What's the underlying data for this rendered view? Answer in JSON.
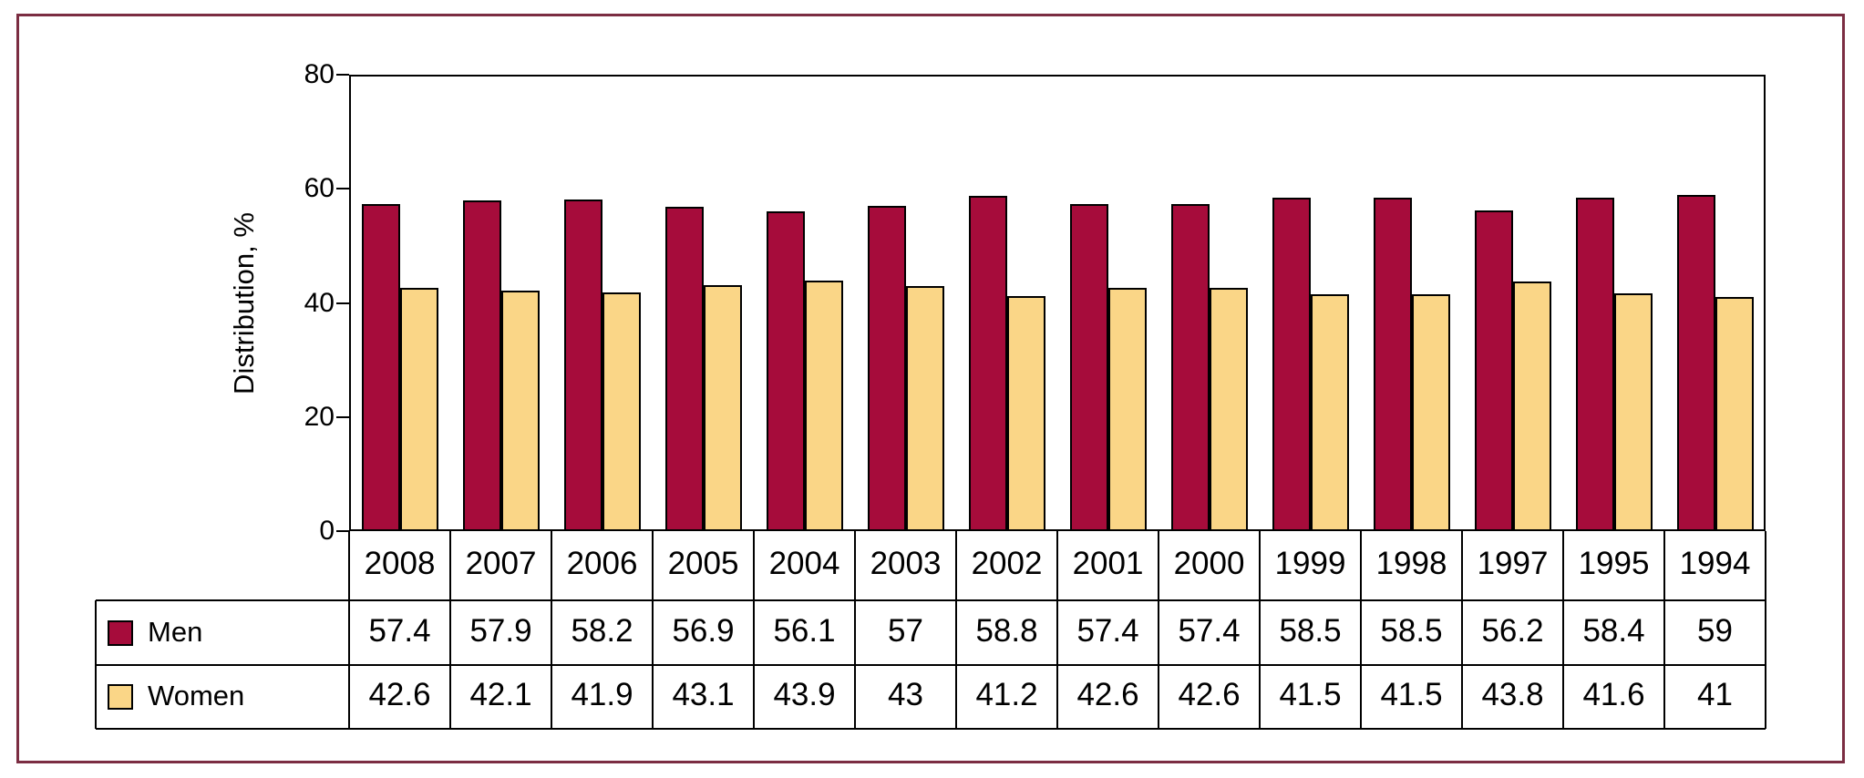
{
  "frame": {
    "border_color": "#7B2D42"
  },
  "chart_data": {
    "type": "bar",
    "title": "",
    "ylabel": "Distribution, %",
    "xlabel": "",
    "ylim": [
      0,
      80
    ],
    "yticks": [
      0,
      20,
      40,
      60,
      80
    ],
    "grid": false,
    "legend_position": "table-left",
    "categories": [
      "2008",
      "2007",
      "2006",
      "2005",
      "2004",
      "2003",
      "2002",
      "2001",
      "2000",
      "1999",
      "1998",
      "1997",
      "1995",
      "1994"
    ],
    "series": [
      {
        "name": "Men",
        "color": "#A60C3B",
        "values": [
          57.4,
          57.9,
          58.2,
          56.9,
          56.1,
          57,
          58.8,
          57.4,
          57.4,
          58.5,
          58.5,
          56.2,
          58.4,
          59
        ]
      },
      {
        "name": "Women",
        "color": "#FAD687",
        "values": [
          42.6,
          42.1,
          41.9,
          43.1,
          43.9,
          43,
          41.2,
          42.6,
          42.6,
          41.5,
          41.5,
          43.8,
          41.6,
          41
        ]
      }
    ]
  }
}
